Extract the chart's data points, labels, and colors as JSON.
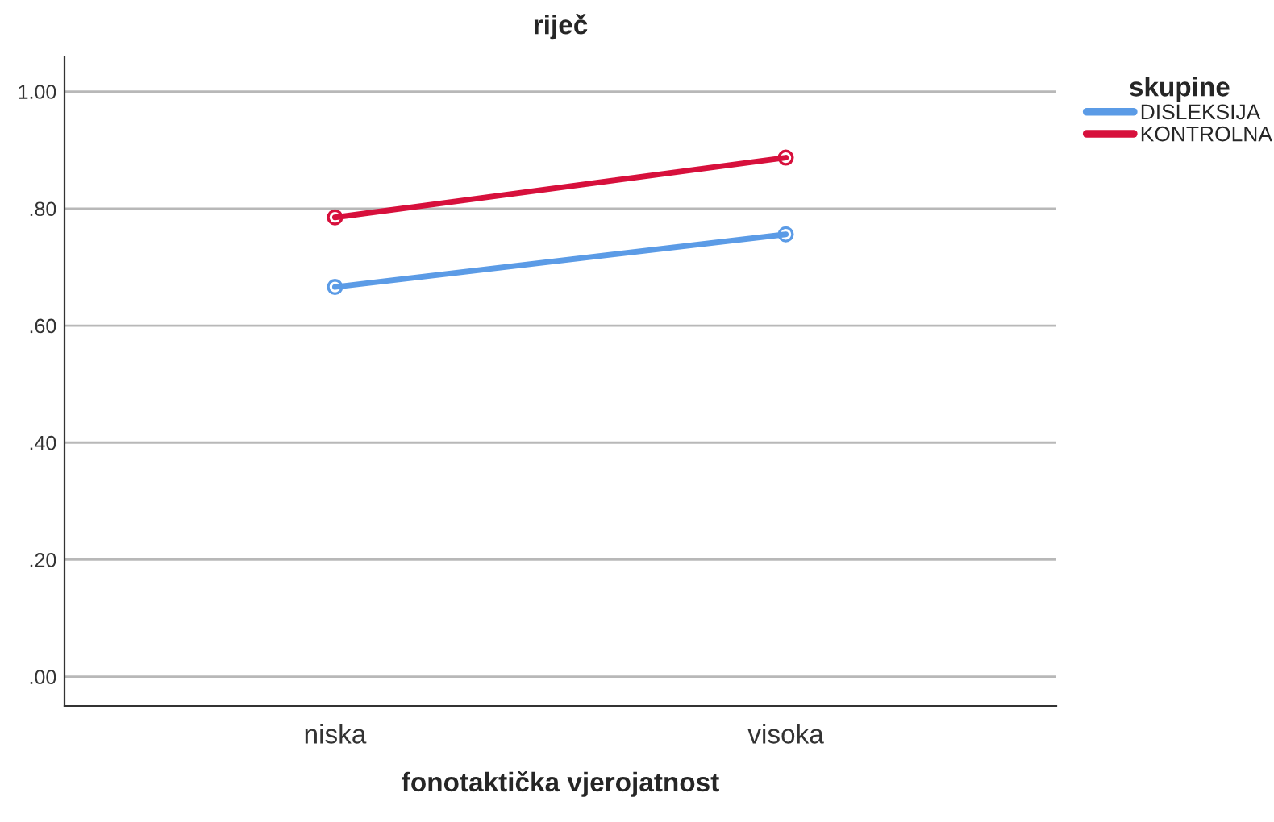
{
  "chart_data": {
    "type": "line",
    "title": "riječ",
    "xlabel": "fonotaktička vjerojatnost",
    "legend_title": "skupine",
    "categories": [
      "niska",
      "visoka"
    ],
    "series": [
      {
        "name": "DISLEKSIJA",
        "color": "#5b9be6",
        "values": [
          0.666,
          0.756
        ]
      },
      {
        "name": "KONTROLNA",
        "color": "#d7103c",
        "values": [
          0.785,
          0.887
        ]
      }
    ],
    "ylim": [
      -0.05,
      1.06
    ],
    "yticks": [
      {
        "value": 0,
        "label": ".00"
      },
      {
        "value": 0.2,
        "label": ".20"
      },
      {
        "value": 0.4,
        "label": ".40"
      },
      {
        "value": 0.6,
        "label": ".60"
      },
      {
        "value": 0.8,
        "label": ".80"
      },
      {
        "value": 1.0,
        "label": "1.00"
      }
    ],
    "grid": "y",
    "legend": "top right",
    "marker": "circle",
    "line_style": "solid"
  }
}
